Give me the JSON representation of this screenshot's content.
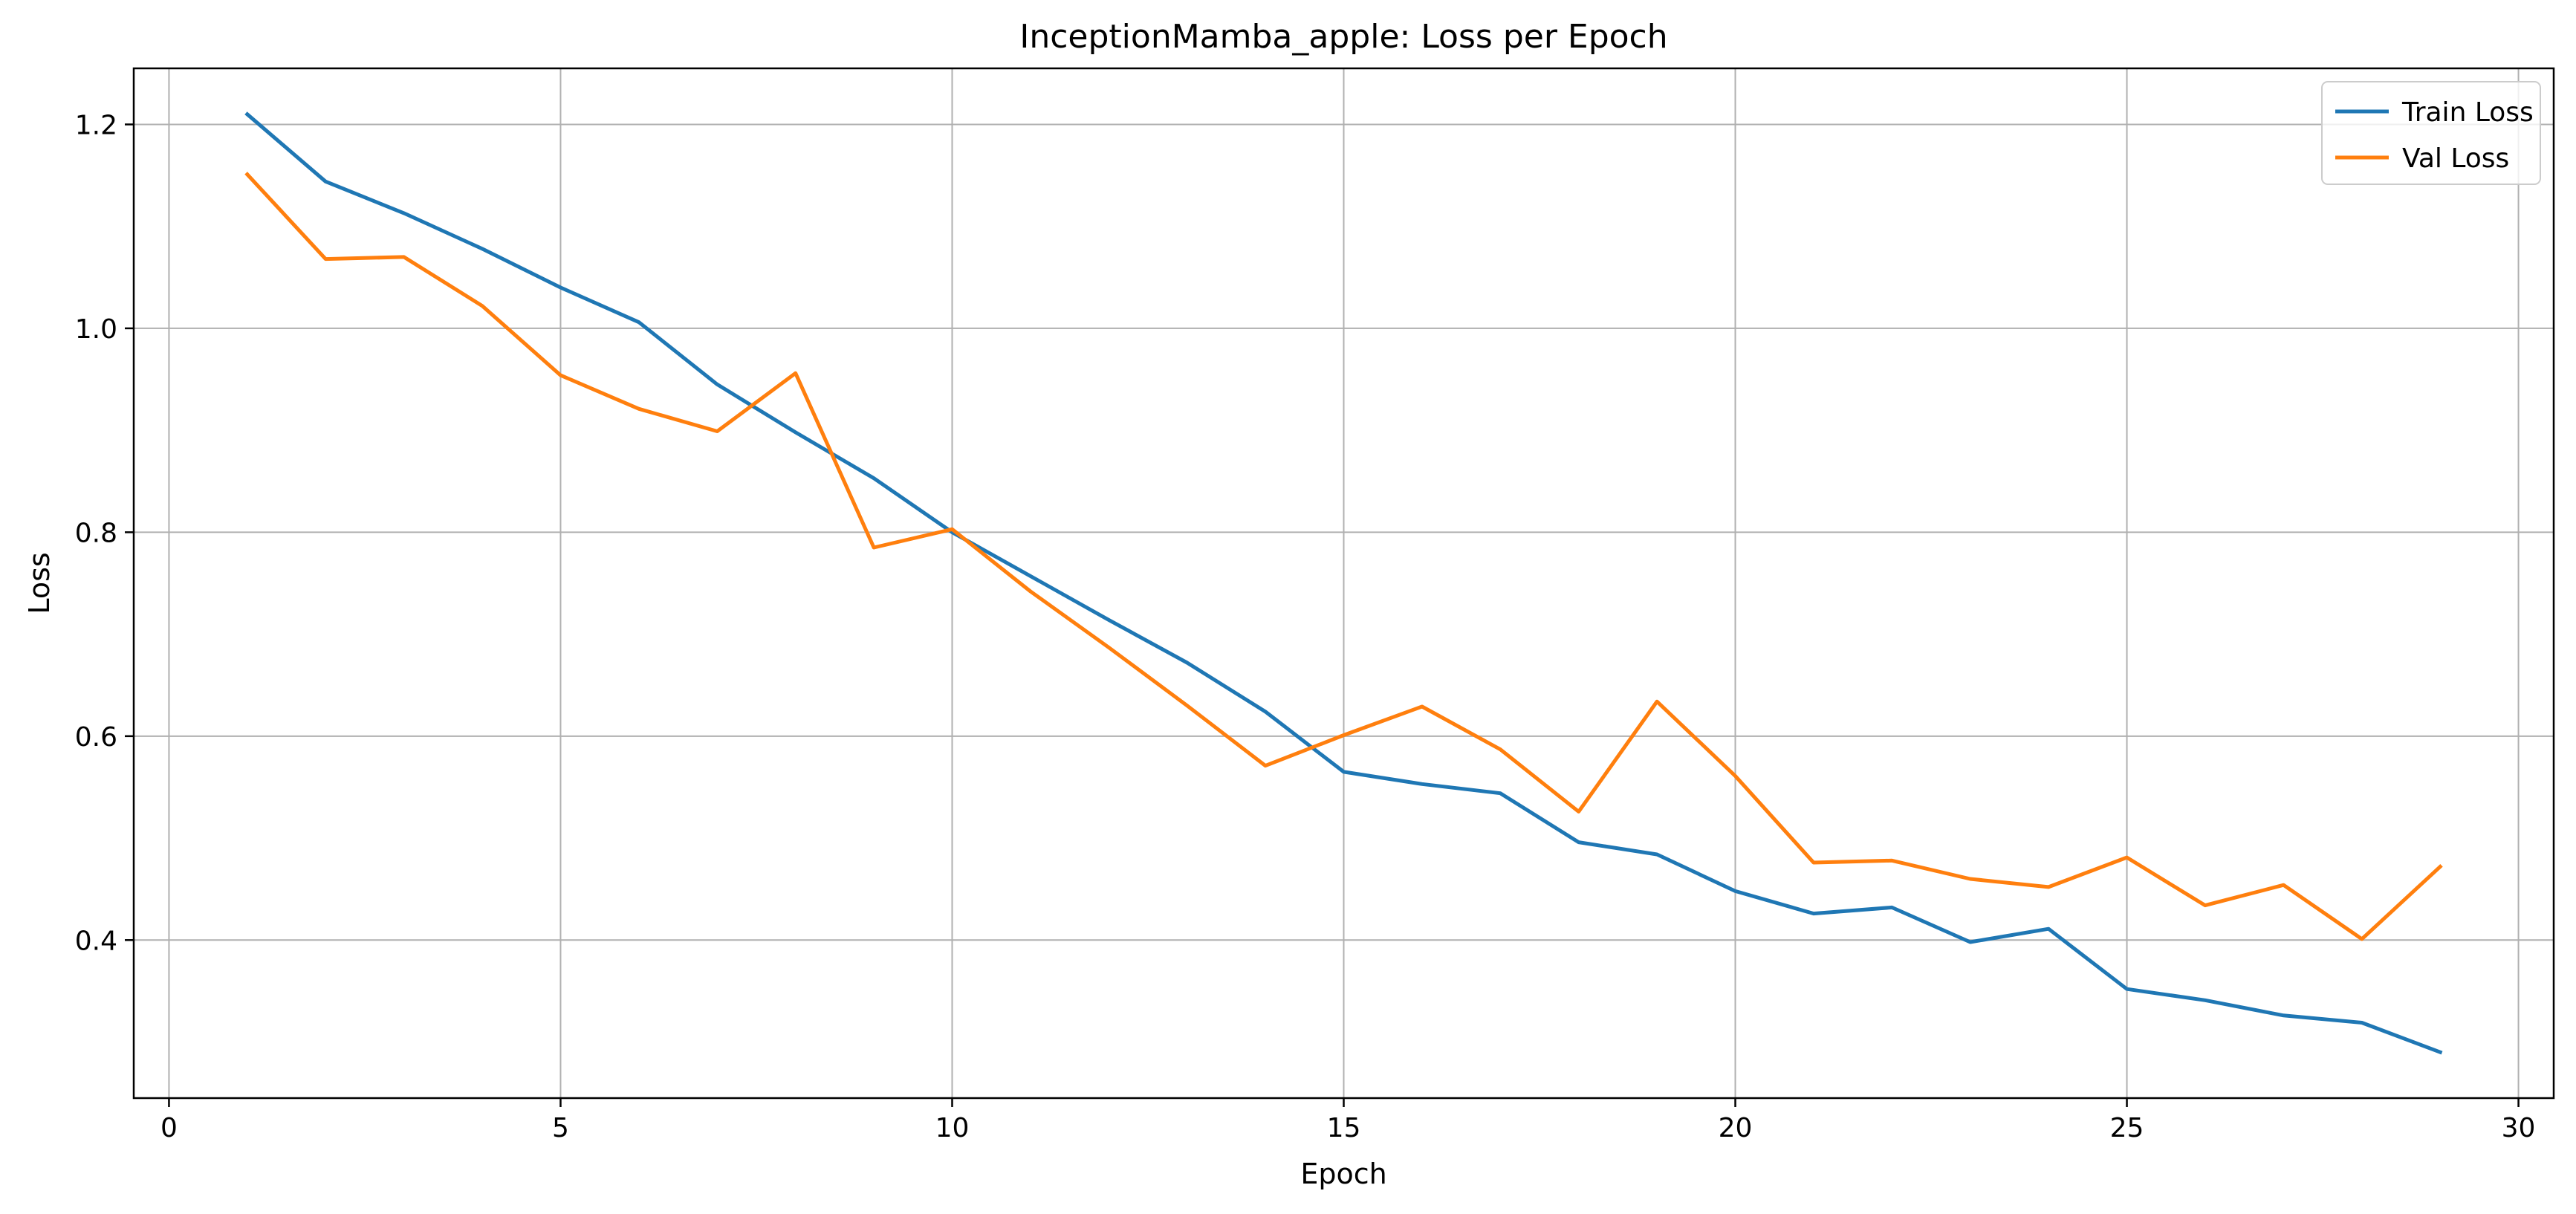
{
  "chart_data": {
    "type": "line",
    "title": "InceptionMamba_apple: Loss per Epoch",
    "xlabel": "Epoch",
    "ylabel": "Loss",
    "xlim": [
      -0.45,
      30.45
    ],
    "ylim": [
      0.245,
      1.255
    ],
    "xticks": [
      0,
      5,
      10,
      15,
      20,
      25,
      30
    ],
    "xtick_labels": [
      "0",
      "5",
      "10",
      "15",
      "20",
      "25",
      "30"
    ],
    "yticks": [
      0.4,
      0.6,
      0.8,
      1.0,
      1.2
    ],
    "ytick_labels": [
      "0.4",
      "0.6",
      "0.8",
      "1.0",
      "1.2"
    ],
    "grid": true,
    "legend_position": "top-right",
    "x": [
      1,
      2,
      3,
      4,
      5,
      6,
      7,
      8,
      9,
      10,
      11,
      12,
      13,
      14,
      15,
      16,
      17,
      18,
      19,
      20,
      21,
      22,
      23,
      24,
      25,
      26,
      27,
      28,
      29
    ],
    "series": [
      {
        "name": "Train Loss",
        "color": "#1f77b4",
        "values": [
          1.21,
          1.144,
          1.113,
          1.078,
          1.04,
          1.006,
          0.945,
          0.898,
          0.853,
          0.8,
          0.757,
          0.714,
          0.672,
          0.624,
          0.565,
          0.553,
          0.544,
          0.496,
          0.484,
          0.448,
          0.426,
          0.432,
          0.398,
          0.411,
          0.352,
          0.341,
          0.326,
          0.319,
          0.29
        ]
      },
      {
        "name": "Val Loss",
        "color": "#ff7f0e",
        "values": [
          1.151,
          1.068,
          1.07,
          1.022,
          0.954,
          0.921,
          0.899,
          0.956,
          0.785,
          0.803,
          0.742,
          0.687,
          0.63,
          0.571,
          0.601,
          0.629,
          0.587,
          0.526,
          0.634,
          0.561,
          0.476,
          0.478,
          0.46,
          0.452,
          0.481,
          0.434,
          0.454,
          0.401,
          0.472
        ]
      }
    ]
  }
}
